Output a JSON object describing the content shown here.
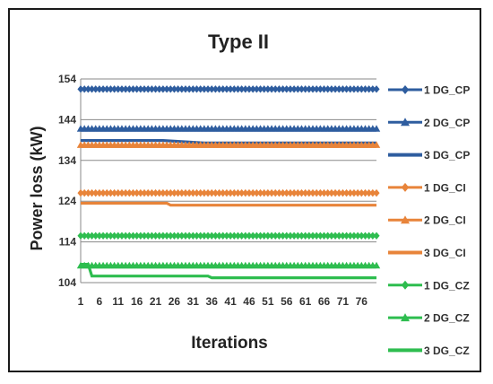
{
  "chart_data": {
    "type": "line",
    "title": "Type II",
    "xlabel": "Iterations",
    "ylabel": "Power loss (kW)",
    "xlim": [
      1,
      80
    ],
    "ylim": [
      104,
      154
    ],
    "y_ticks": [
      104,
      114,
      124,
      134,
      144,
      154
    ],
    "x_ticks": [
      1,
      6,
      11,
      16,
      21,
      26,
      31,
      36,
      41,
      46,
      51,
      56,
      61,
      66,
      71,
      76
    ],
    "grid": "horizontal",
    "legend_position": "right",
    "series": [
      {
        "name": "1 DG_CP",
        "color": "#2e5d9f",
        "marker": "diamond",
        "x": [
          1,
          80
        ],
        "y": [
          151.5,
          151.5
        ]
      },
      {
        "name": "2 DG_CP",
        "color": "#2e5d9f",
        "marker": "triangle",
        "x": [
          1,
          80
        ],
        "y": [
          141.8,
          141.8
        ]
      },
      {
        "name": "3 DG_CP",
        "color": "#2e5d9f",
        "marker": "none",
        "x": [
          1,
          23,
          34,
          80
        ],
        "y": [
          138.9,
          138.9,
          138.3,
          138.3
        ]
      },
      {
        "name": "1 DG_CI",
        "color": "#e8843a",
        "marker": "diamond",
        "x": [
          1,
          80
        ],
        "y": [
          126.0,
          126.0
        ]
      },
      {
        "name": "2 DG_CI",
        "color": "#e8843a",
        "marker": "triangle",
        "x": [
          1,
          80
        ],
        "y": [
          137.8,
          137.8
        ]
      },
      {
        "name": "3 DG_CI",
        "color": "#e8843a",
        "marker": "none",
        "x": [
          1,
          24,
          25,
          80
        ],
        "y": [
          123.5,
          123.5,
          123.0,
          123.0
        ]
      },
      {
        "name": "1 DG_CZ",
        "color": "#2ebd4f",
        "marker": "diamond",
        "x": [
          1,
          80
        ],
        "y": [
          115.5,
          115.5
        ]
      },
      {
        "name": "2 DG_CZ",
        "color": "#2ebd4f",
        "marker": "triangle",
        "x": [
          1,
          80
        ],
        "y": [
          108.2,
          108.2
        ]
      },
      {
        "name": "3 DG_CZ",
        "color": "#2ebd4f",
        "marker": "none",
        "x": [
          1,
          3,
          4,
          35,
          36,
          80
        ],
        "y": [
          108.5,
          108.5,
          105.6,
          105.6,
          105.2,
          105.2
        ]
      }
    ]
  }
}
